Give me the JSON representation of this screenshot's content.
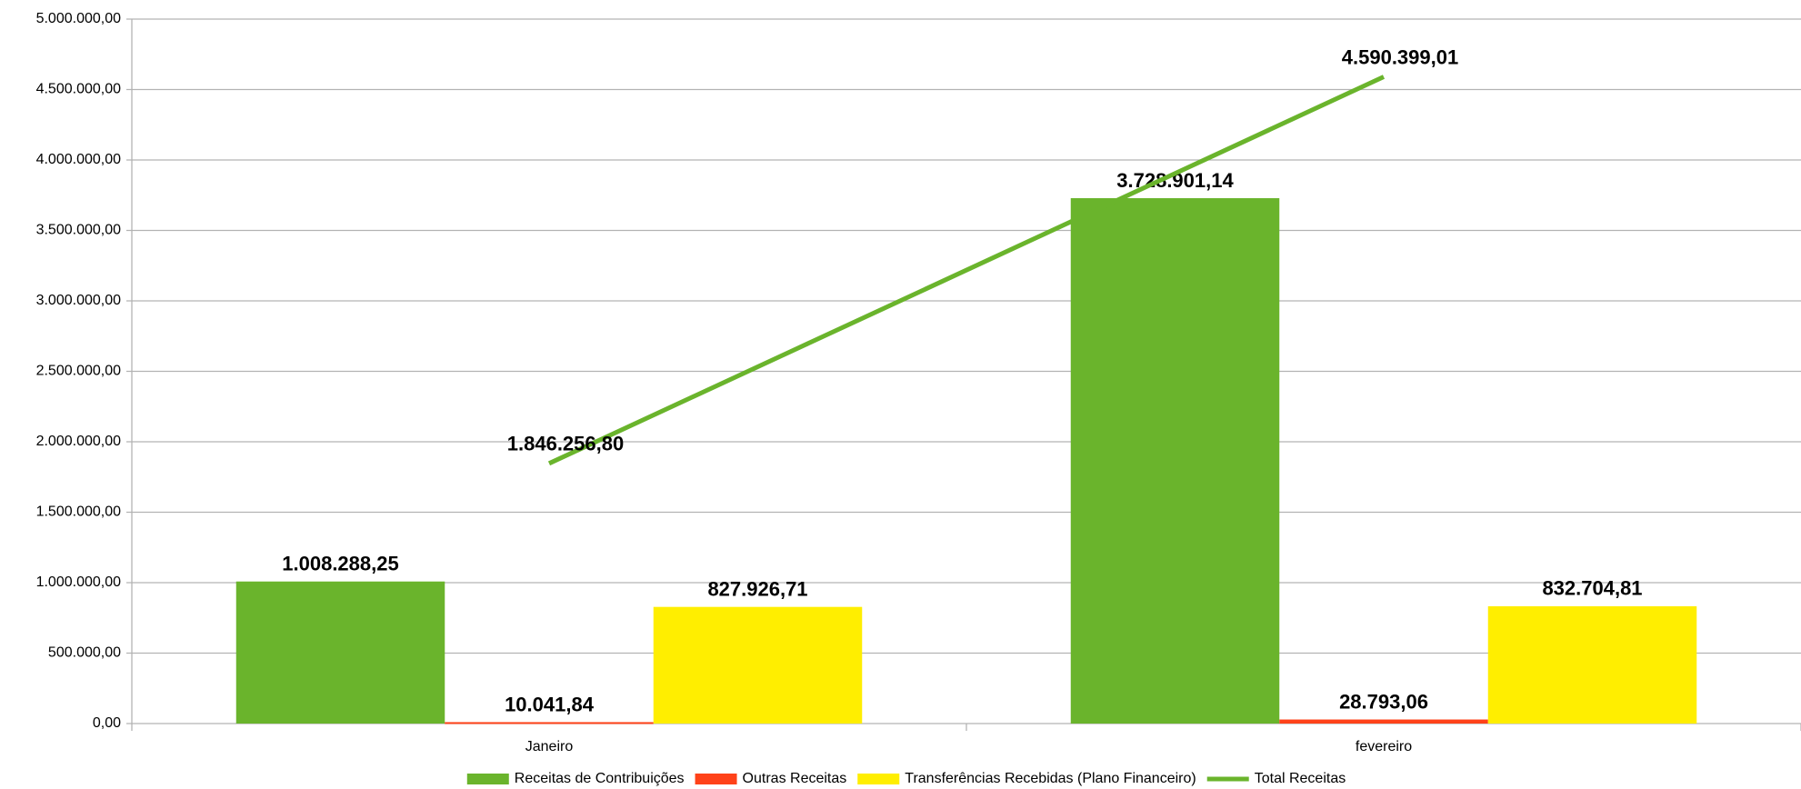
{
  "chart_data": {
    "type": "bar",
    "categories": [
      "Janeiro",
      "fevereiro"
    ],
    "series": [
      {
        "name": "Receitas de Contribuições",
        "color": "#6ab42c",
        "values": [
          1008288.25,
          3728901.14
        ],
        "value_labels": [
          "1.008.288,25",
          "3.728.901,14"
        ]
      },
      {
        "name": "Outras Receitas",
        "color": "#ff4219",
        "values": [
          10041.84,
          28793.06
        ],
        "value_labels": [
          "10.041,84",
          "28.793,06"
        ]
      },
      {
        "name": "Transferências Recebidas (Plano Financeiro)",
        "color": "#ffee00",
        "values": [
          827926.71,
          832704.81
        ],
        "value_labels": [
          "827.926,71",
          "832.704,81"
        ]
      },
      {
        "name": "Total Receitas",
        "color": "#6ab42c",
        "type": "line",
        "values": [
          1846256.8,
          4590399.01
        ],
        "value_labels": [
          "1.846.256,80",
          "4.590.399,01"
        ]
      }
    ],
    "ylim": [
      0,
      5000000
    ],
    "yticks": [
      {
        "value": 0,
        "label": "0,00"
      },
      {
        "value": 500000,
        "label": "500.000,00"
      },
      {
        "value": 1000000,
        "label": "1.000.000,00"
      },
      {
        "value": 1500000,
        "label": "1.500.000,00"
      },
      {
        "value": 2000000,
        "label": "2.000.000,00"
      },
      {
        "value": 2500000,
        "label": "2.500.000,00"
      },
      {
        "value": 3000000,
        "label": "3.000.000,00"
      },
      {
        "value": 3500000,
        "label": "3.500.000,00"
      },
      {
        "value": 4000000,
        "label": "4.000.000,00"
      },
      {
        "value": 4500000,
        "label": "4.500.000,00"
      },
      {
        "value": 5000000,
        "label": "5.000.000,00"
      }
    ],
    "grid": true,
    "legend": "bottom"
  }
}
